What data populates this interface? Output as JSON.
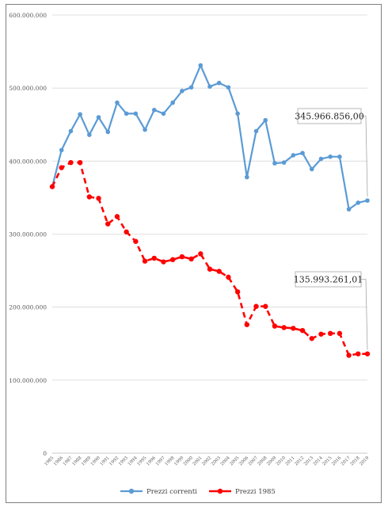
{
  "chart_data": {
    "type": "line",
    "categories": [
      "1985",
      "1986",
      "1987",
      "1988",
      "1989",
      "1990",
      "1991",
      "1992",
      "1993",
      "1994",
      "1995",
      "1996",
      "1997",
      "1998",
      "1999",
      "2000",
      "2001",
      "2002",
      "2003",
      "2004",
      "2005",
      "2006",
      "2007",
      "2008",
      "2009",
      "2010",
      "2011",
      "2012",
      "2013",
      "2014",
      "2015",
      "2016",
      "2017",
      "2018",
      "2019"
    ],
    "ylim": [
      0,
      600000000
    ],
    "yticks": [
      0,
      100000000,
      200000000,
      300000000,
      400000000,
      500000000,
      600000000
    ],
    "ytick_labels": [
      "0",
      "100.000.000",
      "200.000.000",
      "300.000.000",
      "400.000.000",
      "500.000.000",
      "600.000.000"
    ],
    "grid": true,
    "legend_position": "bottom",
    "series": [
      {
        "name": "Prezzi correnti",
        "color": "#5b9bd5",
        "line_style": "solid",
        "values": [
          365000000,
          415000000,
          441000000,
          464000000,
          436000000,
          460000000,
          440000000,
          480000000,
          465000000,
          465000000,
          443000000,
          470000000,
          465000000,
          480000000,
          496000000,
          501000000,
          531000000,
          502000000,
          507000000,
          501000000,
          465000000,
          378000000,
          441000000,
          456000000,
          397000000,
          398000000,
          408000000,
          411000000,
          389000000,
          403000000,
          406000000,
          406000000,
          334000000,
          343000000,
          345966856
        ]
      },
      {
        "name": "Prezzi 1985",
        "color": "#ff0000",
        "line_style": "dashed",
        "values": [
          365000000,
          391000000,
          398000000,
          398000000,
          351000000,
          349000000,
          314000000,
          324000000,
          303000000,
          290000000,
          263000000,
          267000000,
          262000000,
          265000000,
          269000000,
          266000000,
          273000000,
          252000000,
          249000000,
          241000000,
          221000000,
          176000000,
          201000000,
          201000000,
          174000000,
          172000000,
          171000000,
          168000000,
          157000000,
          163000000,
          164000000,
          164000000,
          134000000,
          136000000,
          135993261
        ]
      }
    ],
    "annotations": [
      {
        "series": "Prezzi correnti",
        "point": "2019",
        "text": "345.966.856,00"
      },
      {
        "series": "Prezzi 1985",
        "point": "2019",
        "text": "135.993.261,01"
      }
    ]
  }
}
